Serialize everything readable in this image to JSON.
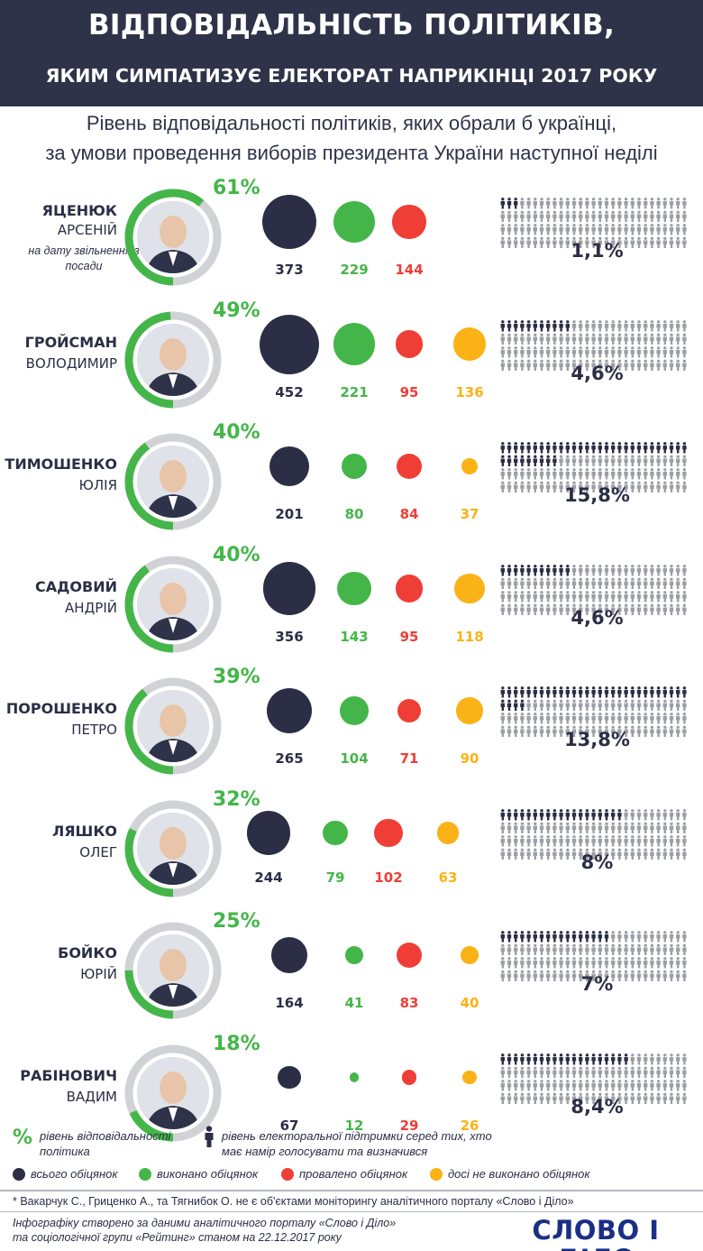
{
  "header": {
    "title_line1": "ВІДПОВІДАЛЬНІСТЬ ПОЛІТИКІВ,",
    "title_line2": "ЯКИМ СИМПАТИЗУЄ ЕЛЕКТОРАТ НАПРИКІНЦІ 2017 РОКУ"
  },
  "subtitle": {
    "line1": "Рівень відповідальності політиків,  яких обрали б українці,",
    "line2": "за умови проведення виборів президента України наступної неділі"
  },
  "colors": {
    "total": "#2b2e45",
    "done": "#44b649",
    "failed": "#ef3e36",
    "pending": "#fbb216",
    "ring_track": "#d0d2d6",
    "person_on": "#2b2e45",
    "person_off": "#9d9fa5"
  },
  "chart_data": {
    "type": "bubble",
    "metrics": [
      "всього обіцянок",
      "виконано обіцянок",
      "провалено обіцянок",
      "досі не виконано обіцянок"
    ],
    "politicians": [
      {
        "last": "ЯЦЕНЮК",
        "first": "АРСЕНІЙ",
        "note": "на дату звільнення з посади",
        "responsibility": "61%",
        "resp_value": 61,
        "total": 373,
        "done": 229,
        "failed": 144,
        "pending": null,
        "support": "1,1%",
        "support_value": 1.1
      },
      {
        "last": "ГРОЙСМАН",
        "first": "ВОЛОДИМИР",
        "note": "",
        "responsibility": "49%",
        "resp_value": 49,
        "total": 452,
        "done": 221,
        "failed": 95,
        "pending": 136,
        "support": "4,6%",
        "support_value": 4.6
      },
      {
        "last": "ТИМОШЕНКО",
        "first": "ЮЛІЯ",
        "note": "",
        "responsibility": "40%",
        "resp_value": 40,
        "total": 201,
        "done": 80,
        "failed": 84,
        "pending": 37,
        "support": "15,8%",
        "support_value": 15.8
      },
      {
        "last": "САДОВИЙ",
        "first": "АНДРІЙ",
        "note": "",
        "responsibility": "40%",
        "resp_value": 40,
        "total": 356,
        "done": 143,
        "failed": 95,
        "pending": 118,
        "support": "4,6%",
        "support_value": 4.6
      },
      {
        "last": "ПОРОШЕНКО",
        "first": "ПЕТРО",
        "note": "",
        "responsibility": "39%",
        "resp_value": 39,
        "total": 265,
        "done": 104,
        "failed": 71,
        "pending": 90,
        "support": "13,8%",
        "support_value": 13.8
      },
      {
        "last": "ЛЯШКО",
        "first": "ОЛЕГ",
        "note": "",
        "responsibility": "32%",
        "resp_value": 32,
        "total": 244,
        "done": 79,
        "failed": 102,
        "pending": 63,
        "support": "8%",
        "support_value": 8
      },
      {
        "last": "БОЙКО",
        "first": "ЮРІЙ",
        "note": "",
        "responsibility": "25%",
        "resp_value": 25,
        "total": 164,
        "done": 41,
        "failed": 83,
        "pending": 40,
        "support": "7%",
        "support_value": 7
      },
      {
        "last": "РАБІНОВИЧ",
        "first": "ВАДИМ",
        "note": "",
        "responsibility": "18%",
        "resp_value": 18,
        "total": 67,
        "done": 12,
        "failed": 29,
        "pending": 26,
        "support": "8,4%",
        "support_value": 8.4
      }
    ]
  },
  "legend": {
    "pct_symbol": "%",
    "pct_text": "рівень відповідальності політика",
    "person_text": "рівень електоральної підтримки серед тих, хто має намір голосувати та визначився",
    "total_text": "всього обіцянок",
    "done_text": "виконано обіцянок",
    "failed_text": "провалено обіцянок",
    "pending_text": "досі не виконано обіцянок"
  },
  "footnote": "* Вакарчук С., Гриценко А., та Тягнибок О. не є об'єктами моніторингу аналітичного порталу «Слово і Діло»",
  "credit": {
    "line1": "Інфографіку створено за даними аналітичного порталу «Слово і Діло»",
    "line2": "та соціологічної групи «Рейтинг» станом на 22.12.2017 року"
  },
  "logo_text": "СЛОВО І ДІЛО"
}
